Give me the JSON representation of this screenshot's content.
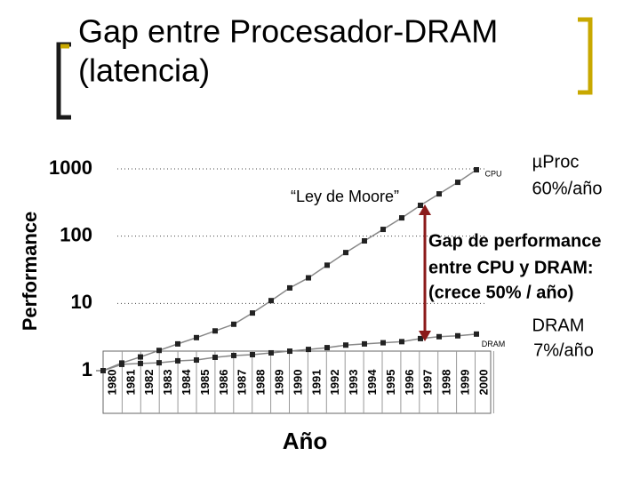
{
  "chart_data": {
    "type": "line",
    "title": [
      "Gap entre Procesador-DRAM",
      "(latencia)"
    ],
    "x_label": "Año",
    "y_label": "Performance",
    "log_y": true,
    "grid": true,
    "categories": [
      "1980",
      "1981",
      "1982",
      "1983",
      "1984",
      "1985",
      "1986",
      "1987",
      "1988",
      "1989",
      "1990",
      "1991",
      "1992",
      "1993",
      "1994",
      "1995",
      "1996",
      "1997",
      "1998",
      "1999",
      "2000"
    ],
    "series": [
      {
        "name": "CPU",
        "color": "#222222",
        "values": [
          1,
          1.3,
          1.6,
          2,
          2.5,
          3.1,
          3.9,
          4.9,
          7.2,
          11,
          17,
          24,
          37,
          57,
          85,
          126,
          187,
          287,
          425,
          632,
          970
        ]
      },
      {
        "name": "DRAM",
        "color": "#222222",
        "values": [
          1,
          1.24,
          1.28,
          1.31,
          1.4,
          1.44,
          1.58,
          1.68,
          1.73,
          1.84,
          1.95,
          2.07,
          2.2,
          2.4,
          2.5,
          2.6,
          2.7,
          3.0,
          3.2,
          3.3,
          3.5
        ]
      }
    ],
    "ylim": [
      1,
      1000
    ],
    "yticks": [
      1,
      10,
      100,
      1000
    ],
    "annotations": [
      "“Ley de Moore”",
      "µProc",
      "60%/año",
      "Gap de performance",
      "entre CPU y DRAM:",
      "(crece 50% / año)",
      "DRAM",
      "7%/año"
    ]
  }
}
